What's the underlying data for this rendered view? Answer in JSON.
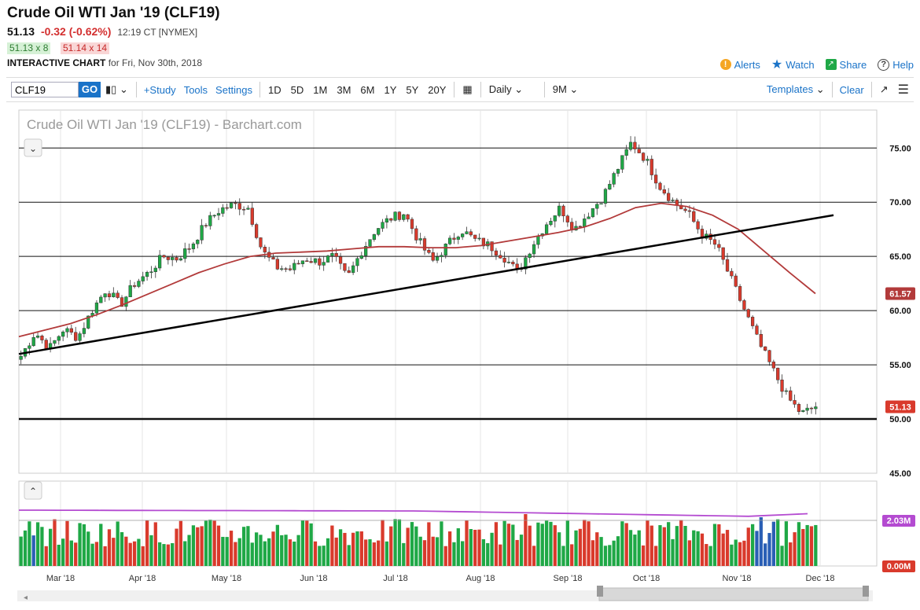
{
  "header": {
    "title": "Crude Oil WTI Jan '19 (CLF19)",
    "last": "51.13",
    "change": "-0.32 (-0.62%)",
    "time": "12:19 CT [NYMEX]",
    "bid": "51.13 x 8",
    "ask": "51.14 x 14",
    "chart_label": "INTERACTIVE CHART",
    "chart_for": "for Fri, Nov 30th, 2018"
  },
  "top_links": {
    "alerts": "Alerts",
    "watch": "Watch",
    "share": "Share",
    "help": "Help"
  },
  "toolbar": {
    "symbol": "CLF19",
    "go": "GO",
    "study": "+Study",
    "tools": "Tools",
    "settings": "Settings",
    "periods": [
      "1D",
      "5D",
      "1M",
      "3M",
      "6M",
      "1Y",
      "5Y",
      "20Y"
    ],
    "interval": "Daily",
    "range": "9M",
    "templates": "Templates",
    "clear": "Clear"
  },
  "colors": {
    "up": "#1fa846",
    "down": "#d93a2c",
    "ma": "#b23a3a",
    "ma_vol": "#b44bd1",
    "link": "#1a73c8"
  },
  "chart_data": {
    "type": "candlestick",
    "title": "Crude Oil WTI Jan '19 (CLF19) - Barchart.com",
    "x_labels": [
      "Mar '18",
      "Apr '18",
      "May '18",
      "Jun '18",
      "Jul '18",
      "Aug '18",
      "Sep '18",
      "Oct '18",
      "Nov '18",
      "Dec '18"
    ],
    "ylim": [
      45,
      78.5
    ],
    "y_ticks": [
      "75.00",
      "70.00",
      "65.00",
      "60.00",
      "55.00",
      "50.00",
      "45.00"
    ],
    "horizontal_lines": [
      75,
      70,
      65,
      60,
      55,
      50
    ],
    "last_price_label": "51.13",
    "ma_label": "61.57",
    "trendline": {
      "start_price": 56.0,
      "end_price": 68.8
    },
    "price_path": [
      55.8,
      58.0,
      56.5,
      58.3,
      57.5,
      60.0,
      62.0,
      60.5,
      62.5,
      63.5,
      65.0,
      64.8,
      66.0,
      68.0,
      69.3,
      69.8,
      69.5,
      65.5,
      64.0,
      63.8,
      64.8,
      64.5,
      65.0,
      63.0,
      65.5,
      67.5,
      68.5,
      69.0,
      66.5,
      64.5,
      66.0,
      67.5,
      66.5,
      66.0,
      65.0,
      63.5,
      66.0,
      68.0,
      69.5,
      67.5,
      69.0,
      70.5,
      73.0,
      75.5,
      74.0,
      71.5,
      70.0,
      69.0,
      67.0,
      66.0,
      63.0,
      60.0,
      57.0,
      54.5,
      52.0,
      50.5,
      51.13
    ],
    "ma_path": [
      57.6,
      58.2,
      58.8,
      59.6,
      60.5,
      61.5,
      62.5,
      63.5,
      64.3,
      65.0,
      65.3,
      65.4,
      65.5,
      65.7,
      65.9,
      65.9,
      65.8,
      65.8,
      66.0,
      66.4,
      66.8,
      67.2,
      67.7,
      68.5,
      69.5,
      69.9,
      69.6,
      68.8,
      67.5,
      65.5,
      63.5,
      61.57
    ],
    "volume": {
      "ylim_label_top": "2.03M",
      "ylim_label_bottom": "0.00M"
    }
  }
}
